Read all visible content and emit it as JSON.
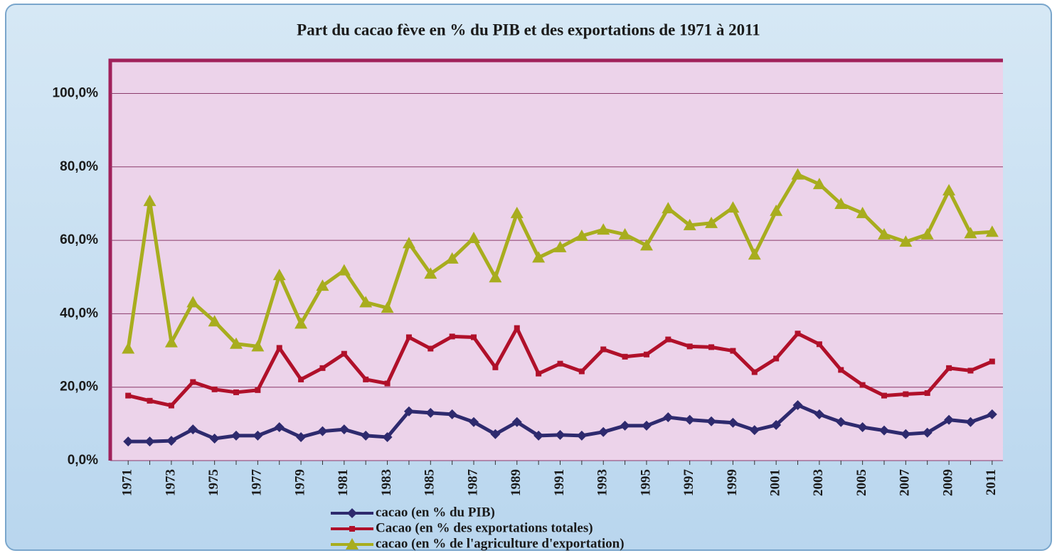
{
  "chart_data": {
    "type": "line",
    "title": "Part du cacao fève en % du PIB et des exportations  de 1971 à 2011",
    "categories": [
      "1971",
      null,
      "1973",
      null,
      "1975",
      null,
      "1977",
      null,
      "1979",
      null,
      "1981",
      null,
      "1983",
      null,
      "1985",
      null,
      "1987",
      null,
      "1989",
      null,
      "1991",
      null,
      "1993",
      null,
      "1995",
      null,
      "1997",
      null,
      "1999",
      null,
      "2001",
      null,
      "2003",
      null,
      "2005",
      null,
      "2007",
      null,
      "2009",
      null,
      "2011"
    ],
    "series": [
      {
        "name": "cacao (en % du PIB)",
        "color": "#2e2a6e",
        "marker": "diamond",
        "values": [
          5.2,
          5.2,
          5.4,
          8.5,
          6.0,
          6.8,
          6.8,
          9.1,
          6.4,
          8.0,
          8.5,
          6.8,
          6.4,
          13.4,
          13.0,
          12.6,
          10.5,
          7.2,
          10.5,
          6.8,
          7.0,
          6.8,
          7.8,
          9.5,
          9.5,
          11.8,
          11.1,
          10.7,
          10.3,
          8.3,
          9.7,
          15.1,
          12.6,
          10.5,
          9.1,
          8.2,
          7.2,
          7.6,
          11.1,
          10.5,
          12.6
        ]
      },
      {
        "name": "Cacao (en % des exportations totales)",
        "color": "#b0102a",
        "marker": "square",
        "values": [
          17.7,
          16.3,
          15.0,
          21.4,
          19.4,
          18.6,
          19.2,
          30.7,
          22.1,
          25.2,
          29.1,
          22.1,
          21.0,
          33.6,
          30.5,
          33.8,
          33.6,
          25.4,
          36.1,
          23.7,
          26.4,
          24.3,
          30.3,
          28.3,
          28.9,
          33.0,
          31.1,
          30.9,
          29.9,
          24.1,
          27.8,
          34.6,
          31.7,
          24.7,
          20.6,
          17.7,
          18.1,
          18.4,
          25.2,
          24.5,
          27.0
        ]
      },
      {
        "name": "cacao (en % de l'agriculture d'exportation)",
        "color": "#a8ad1e",
        "marker": "triangle",
        "values": [
          30.5,
          70.7,
          32.2,
          43.1,
          37.9,
          31.8,
          31.1,
          50.5,
          37.3,
          47.6,
          51.8,
          43.1,
          41.6,
          59.2,
          50.9,
          55.0,
          60.6,
          49.9,
          67.4,
          55.3,
          58.1,
          61.2,
          62.9,
          61.6,
          58.6,
          68.7,
          64.1,
          64.7,
          68.9,
          56.1,
          68.0,
          77.9,
          75.3,
          69.9,
          67.4,
          61.6,
          59.6,
          61.6,
          73.6,
          61.9,
          62.3
        ]
      }
    ],
    "ylim": [
      0,
      109
    ],
    "yticks": [
      {
        "value": 0,
        "label": "0,0%"
      },
      {
        "value": 20,
        "label": "20,0%"
      },
      {
        "value": 40,
        "label": "40,0%"
      },
      {
        "value": 60,
        "label": "60,0%"
      },
      {
        "value": 80,
        "label": "80,0%"
      },
      {
        "value": 100,
        "label": "100,0%"
      }
    ],
    "grid": true
  }
}
